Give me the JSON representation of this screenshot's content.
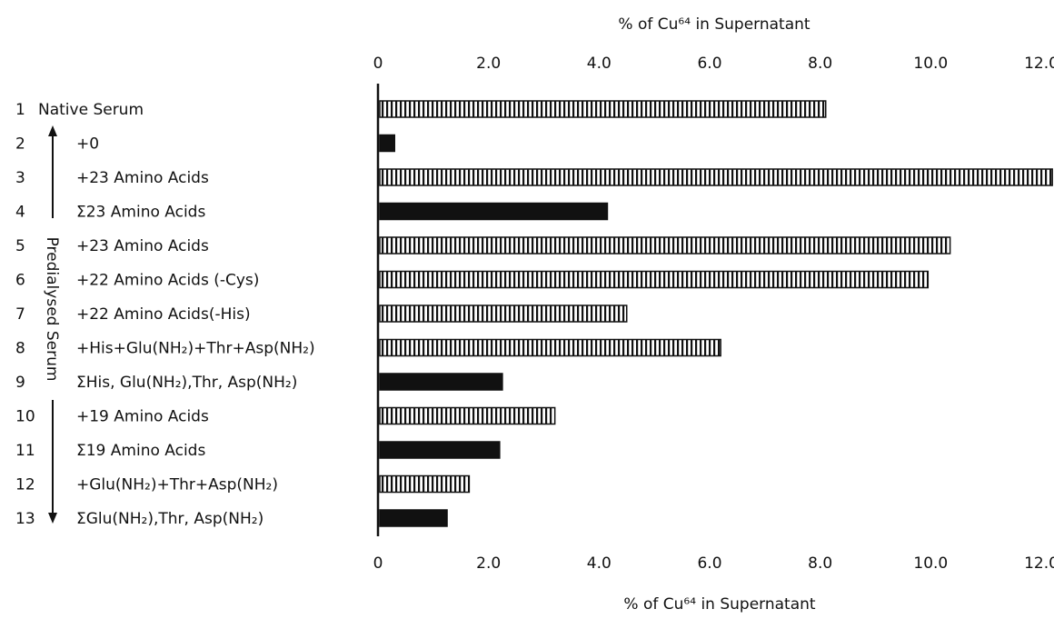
{
  "chart_data": {
    "type": "bar",
    "orientation": "horizontal",
    "title": "",
    "top_axis_label": "% of Cu⁶⁴ in Supernatant",
    "bottom_axis_label": "% of Cu⁶⁴ in Supernatant",
    "ticks": [
      "0",
      "2.0",
      "4.0",
      "6.0",
      "8.0",
      "10.0",
      "12.0"
    ],
    "xlim": [
      0,
      12.0
    ],
    "group_label": "Predialysed Serum",
    "group_rows": [
      2,
      13
    ],
    "categories": [
      {
        "num": "1",
        "label": "Native Serum",
        "value": 8.1,
        "style": "hatched"
      },
      {
        "num": "2",
        "label": "+0",
        "value": 0.3,
        "style": "solid"
      },
      {
        "num": "3",
        "label": "+23 Amino Acids",
        "value": 12.2,
        "style": "hatched"
      },
      {
        "num": "4",
        "label": "Σ23 Amino Acids",
        "value": 4.15,
        "style": "solid"
      },
      {
        "num": "5",
        "label": "+23 Amino Acids",
        "value": 10.35,
        "style": "hatched"
      },
      {
        "num": "6",
        "label": "+22 Amino Acids (-Cys)",
        "value": 9.95,
        "style": "hatched"
      },
      {
        "num": "7",
        "label": "+22 Amino Acids(-His)",
        "value": 4.5,
        "style": "hatched"
      },
      {
        "num": "8",
        "label": "+His+Glu(NH₂)+Thr+Asp(NH₂)",
        "value": 6.2,
        "style": "hatched"
      },
      {
        "num": "9",
        "label": "ΣHis, Glu(NH₂),Thr, Asp(NH₂)",
        "value": 2.25,
        "style": "solid"
      },
      {
        "num": "10",
        "label": "+19 Amino Acids",
        "value": 3.2,
        "style": "hatched"
      },
      {
        "num": "11",
        "label": "Σ19 Amino Acids",
        "value": 2.2,
        "style": "solid"
      },
      {
        "num": "12",
        "label": "+Glu(NH₂)+Thr+Asp(NH₂)",
        "value": 1.65,
        "style": "hatched"
      },
      {
        "num": "13",
        "label": "ΣGlu(NH₂),Thr, Asp(NH₂)",
        "value": 1.25,
        "style": "solid"
      }
    ],
    "colors": {
      "bar": "#111111",
      "hatch_bg": "#ffffff"
    },
    "grid": false,
    "legend": "none"
  }
}
